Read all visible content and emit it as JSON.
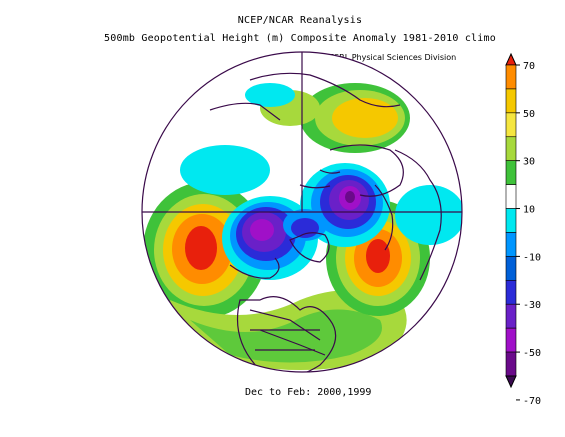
{
  "title": {
    "line1": "NCEP/NCAR Reanalysis",
    "line2": "500mb Geopotential Height (m) Composite Anomaly 1981-2010 climo"
  },
  "credit": "NOAA/ESRL Physical Sciences Division",
  "footer": "Dec to Feb: 2000,1999",
  "colorbar": {
    "labels": [
      "70",
      "50",
      "30",
      "10",
      "-10",
      "-30",
      "-50",
      "-70"
    ],
    "colors": [
      "#e8200c",
      "#ff8c00",
      "#f5c800",
      "#f5e640",
      "#a7d93c",
      "#3fc23a",
      "#ffffff",
      "#00e8f0",
      "#0096ff",
      "#0060d8",
      "#2b2bd8",
      "#6a20c8",
      "#a010c8",
      "#6a0a8a",
      "#3a0a50"
    ]
  },
  "map": {
    "projection": "north polar stereographic",
    "anomaly_centers": [
      {
        "sign": "positive",
        "region": "central North Pacific",
        "peak": 60
      },
      {
        "sign": "positive",
        "region": "eastern North Atlantic",
        "peak": 60
      },
      {
        "sign": "positive",
        "region": "Siberia",
        "peak": 40
      },
      {
        "sign": "negative",
        "region": "Canada / Hudson Bay",
        "peak": -60
      },
      {
        "sign": "negative",
        "region": "Arctic / Barents Sea",
        "peak": -60
      }
    ]
  }
}
